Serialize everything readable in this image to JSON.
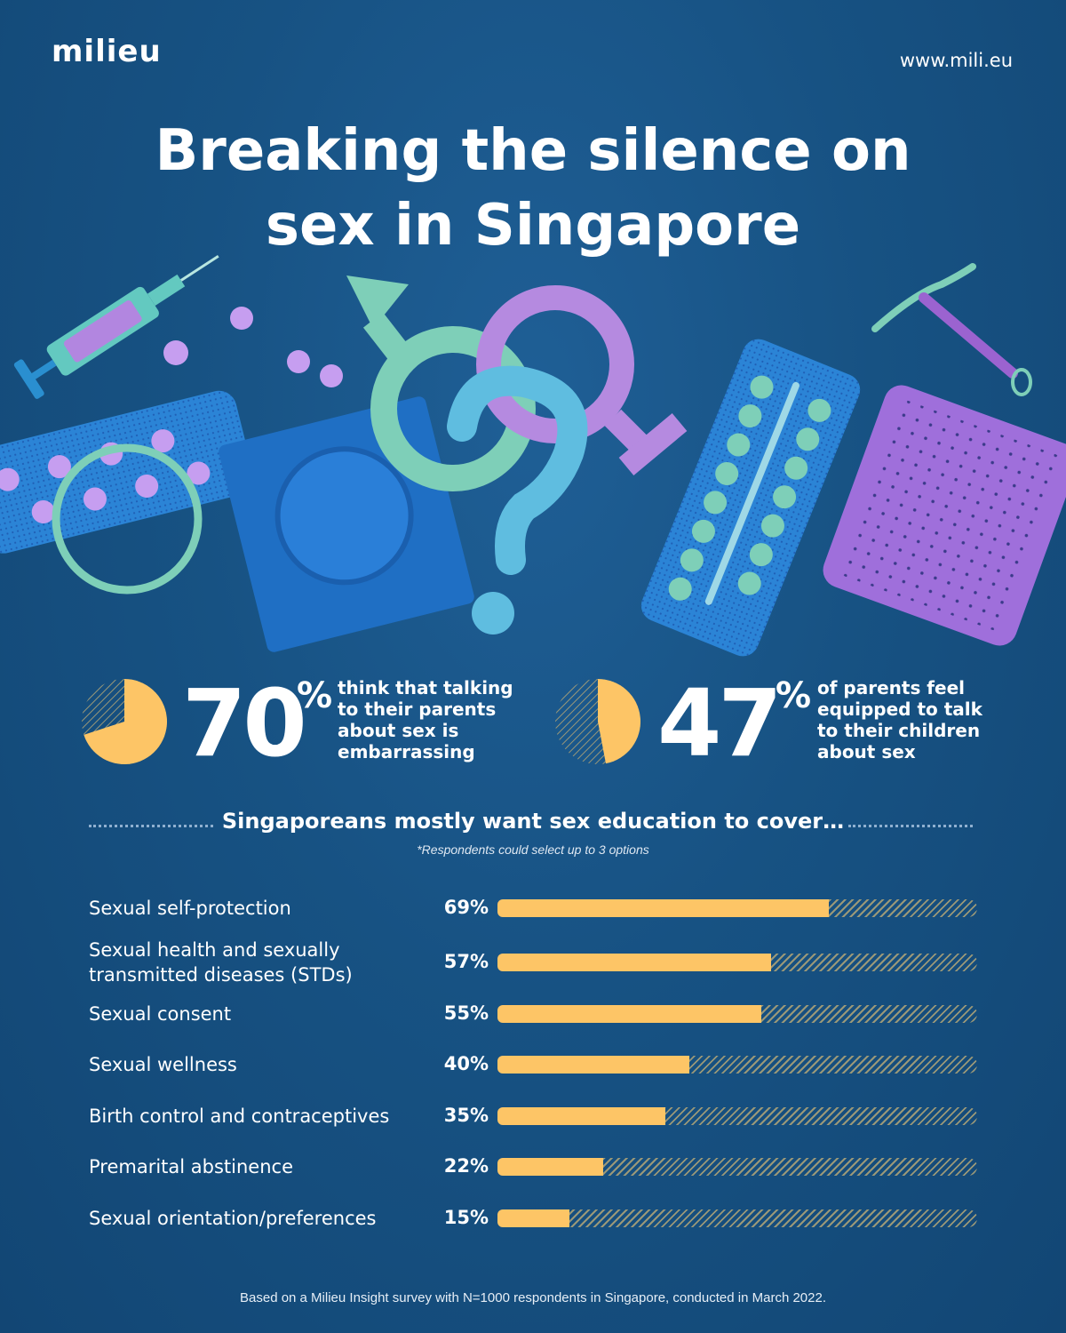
{
  "header": {
    "logo": "milieu",
    "url": "www.mili.eu"
  },
  "title": {
    "line1": "Breaking the silence on",
    "line2": "sex in Singapore"
  },
  "stats": [
    {
      "value": "70",
      "percent_sign": "%",
      "fraction": 0.7,
      "text": "think that talking to their parents about sex is embarrassing"
    },
    {
      "value": "47",
      "percent_sign": "%",
      "fraction": 0.47,
      "text": "of parents feel equipped to talk to their children about sex"
    }
  ],
  "section": {
    "title": "Singaporeans mostly want sex education to cover…",
    "note": "*Respondents could select up to 3 options"
  },
  "chart_data": {
    "type": "bar",
    "orientation": "horizontal",
    "categories": [
      "Sexual self-protection",
      "Sexual health and sexually transmitted diseases (STDs)",
      "Sexual consent",
      "Sexual wellness",
      "Birth control and contraceptives",
      "Premarital abstinence",
      "Sexual orientation/preferences"
    ],
    "values": [
      69,
      57,
      55,
      40,
      35,
      22,
      15
    ],
    "value_labels": [
      "69%",
      "57%",
      "55%",
      "40%",
      "35%",
      "22%",
      "15%"
    ],
    "xlim": [
      0,
      100
    ],
    "bar_color": "#fdc566"
  },
  "colors": {
    "background": "#175283",
    "accent_yellow": "#fdc566",
    "teal": "#7ecfb8",
    "purple": "#b58ae0",
    "light_blue": "#5fbde0"
  },
  "footer": "Based on a Milieu Insight survey with N=1000 respondents in Singapore, conducted in March 2022."
}
